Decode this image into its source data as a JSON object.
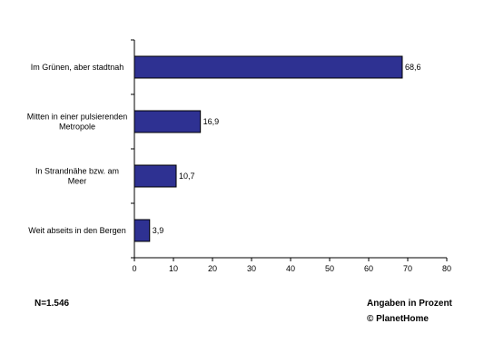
{
  "chart_data": {
    "type": "bar",
    "orientation": "horizontal",
    "categories": [
      [
        "Im Grünen, aber stadtnah"
      ],
      [
        "Mitten in einer pulsierenden",
        "Metropole"
      ],
      [
        "In Strandnähe bzw. am",
        "Meer"
      ],
      [
        "Weit abseits in den Bergen"
      ]
    ],
    "values": [
      68.6,
      16.9,
      10.7,
      3.9
    ],
    "value_labels": [
      "68,6",
      "16,9",
      "10,7",
      "3,9"
    ],
    "xlim": [
      0,
      80
    ],
    "x_ticks": [
      0,
      10,
      20,
      30,
      40,
      50,
      60,
      70,
      80
    ],
    "grid": false,
    "bar_color": "#2e3192",
    "bar_edge_color": "#000000"
  },
  "footer": {
    "sample_size": "N=1.546",
    "unit_note": "Angaben in Prozent",
    "source": "© PlanetHome"
  }
}
